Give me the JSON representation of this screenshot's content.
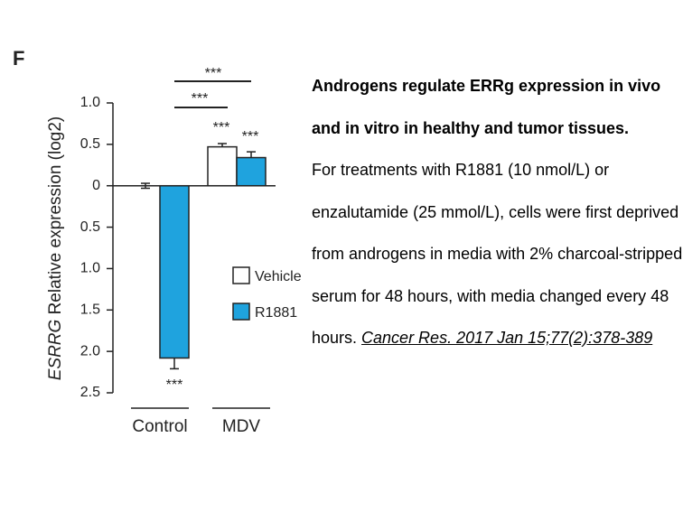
{
  "panel_label": "F",
  "chart_data": {
    "type": "bar",
    "ylabel_gene": "ESRRG",
    "ylabel": " Relative expression (log2)",
    "categories": [
      "Control",
      "MDV"
    ],
    "series": [
      {
        "name": "Vehicle",
        "color": "#ffffff",
        "values": [
          0.0,
          0.47
        ],
        "errors": [
          0.03,
          0.04
        ]
      },
      {
        "name": "R1881",
        "color": "#1fa3de",
        "values": [
          -2.08,
          0.34
        ],
        "errors": [
          0.13,
          0.07
        ]
      }
    ],
    "ylim": [
      -2.5,
      1.0
    ],
    "yticks": [
      {
        "value": 1.0,
        "label": "1.0"
      },
      0.5,
      0,
      {
        "value": -0.5,
        "label": "0.5"
      },
      {
        "value": -1.0,
        "label": "1.0"
      },
      {
        "value": -1.5,
        "label": "1.5"
      },
      {
        "value": -2.0,
        "label": "2.0"
      },
      {
        "value": -2.5,
        "label": "2.5"
      }
    ],
    "annotations": [
      "***",
      "***",
      "***",
      "***",
      "***"
    ]
  },
  "caption": {
    "title": "Androgens regulate ERRg expression in vivo and in vitro in healthy and tumor tissues.",
    "body": "For treatments with R1881 (10 nmol/L) or enzalutamide (25 mmol/L), cells were first deprived from androgens in media with 2% charcoal-stripped serum for 48 hours, with media changed every 48 hours. ",
    "link": "Cancer Res. 2017 Jan 15;77(2):378-389"
  }
}
